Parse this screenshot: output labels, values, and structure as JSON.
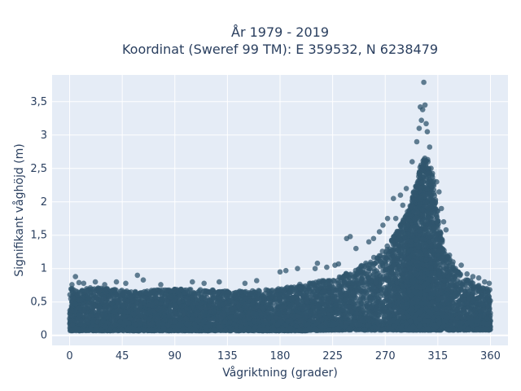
{
  "colors": {
    "plot_bg": "#e5ecf6",
    "grid": "#ffffff",
    "marker": "#30566e",
    "text": "#2a3f5f",
    "page_bg": "#ffffff"
  },
  "chart_data": {
    "type": "scatter",
    "title": "År 1979 - 2019",
    "subtitle": "Koordinat (Sweref 99 TM): E 359532, N 6238479",
    "xlabel": "Vågriktning (grader)",
    "ylabel": "Signifikant våghöjd (m)",
    "xlim": [
      -15,
      375
    ],
    "ylim": [
      -0.15,
      3.9
    ],
    "xticks": [
      0,
      45,
      90,
      135,
      180,
      225,
      270,
      315,
      360
    ],
    "yticks": [
      0,
      0.5,
      1,
      1.5,
      2,
      2.5,
      3,
      3.5
    ],
    "ytick_labels": [
      "0",
      "0,5",
      "1",
      "1,5",
      "2",
      "2,5",
      "3",
      "3,5"
    ],
    "grid": true,
    "legend": "none",
    "marker_opacity": 0.75,
    "envelope": {
      "description": "upper edge of dense cloud of points by direction (data units)",
      "x": [
        0,
        20,
        45,
        60,
        90,
        120,
        135,
        150,
        180,
        200,
        225,
        240,
        255,
        270,
        280,
        290,
        295,
        300,
        305,
        310,
        315,
        320,
        330,
        340,
        350,
        360
      ],
      "y_upper": [
        0.7,
        0.72,
        0.68,
        0.66,
        0.7,
        0.68,
        0.67,
        0.66,
        0.7,
        0.78,
        0.85,
        0.95,
        1.1,
        1.3,
        1.55,
        1.9,
        2.2,
        2.55,
        2.7,
        2.5,
        1.9,
        1.3,
        1.0,
        0.85,
        0.75,
        0.7
      ],
      "y_lower": [
        0.07,
        0.07,
        0.07,
        0.07,
        0.07,
        0.07,
        0.07,
        0.07,
        0.07,
        0.07,
        0.08,
        0.08,
        0.08,
        0.08,
        0.08,
        0.08,
        0.08,
        0.08,
        0.08,
        0.08,
        0.08,
        0.08,
        0.08,
        0.08,
        0.08,
        0.08
      ]
    },
    "outliers": [
      {
        "x": 303,
        "y": 3.79
      },
      {
        "x": 304,
        "y": 3.45
      },
      {
        "x": 300,
        "y": 3.42
      },
      {
        "x": 302,
        "y": 3.38
      },
      {
        "x": 301,
        "y": 3.22
      },
      {
        "x": 305,
        "y": 3.17
      },
      {
        "x": 299,
        "y": 3.1
      },
      {
        "x": 306,
        "y": 3.05
      },
      {
        "x": 297,
        "y": 2.9
      },
      {
        "x": 308,
        "y": 2.82
      },
      {
        "x": 293,
        "y": 2.6
      },
      {
        "x": 283,
        "y": 2.1
      },
      {
        "x": 288,
        "y": 2.2
      },
      {
        "x": 277,
        "y": 2.05
      },
      {
        "x": 316,
        "y": 2.15
      },
      {
        "x": 318,
        "y": 1.9
      },
      {
        "x": 320,
        "y": 1.7
      },
      {
        "x": 322,
        "y": 1.58
      },
      {
        "x": 314,
        "y": 2.3
      },
      {
        "x": 279,
        "y": 1.75
      },
      {
        "x": 285,
        "y": 1.95
      },
      {
        "x": 265,
        "y": 1.55
      },
      {
        "x": 268,
        "y": 1.65
      },
      {
        "x": 272,
        "y": 1.75
      },
      {
        "x": 260,
        "y": 1.45
      },
      {
        "x": 256,
        "y": 1.4
      },
      {
        "x": 245,
        "y": 1.3
      },
      {
        "x": 240,
        "y": 1.48
      },
      {
        "x": 237,
        "y": 1.45
      },
      {
        "x": 230,
        "y": 1.07
      },
      {
        "x": 227,
        "y": 1.05
      },
      {
        "x": 220,
        "y": 1.02
      },
      {
        "x": 212,
        "y": 1.08
      },
      {
        "x": 210,
        "y": 1.0
      },
      {
        "x": 195,
        "y": 1.0
      },
      {
        "x": 185,
        "y": 0.97
      },
      {
        "x": 180,
        "y": 0.95
      },
      {
        "x": 160,
        "y": 0.82
      },
      {
        "x": 150,
        "y": 0.78
      },
      {
        "x": 128,
        "y": 0.8
      },
      {
        "x": 115,
        "y": 0.78
      },
      {
        "x": 105,
        "y": 0.8
      },
      {
        "x": 78,
        "y": 0.76
      },
      {
        "x": 63,
        "y": 0.83
      },
      {
        "x": 58,
        "y": 0.9
      },
      {
        "x": 48,
        "y": 0.78
      },
      {
        "x": 40,
        "y": 0.8
      },
      {
        "x": 30,
        "y": 0.76
      },
      {
        "x": 22,
        "y": 0.8
      },
      {
        "x": 12,
        "y": 0.78
      },
      {
        "x": 8,
        "y": 0.79
      },
      {
        "x": 5,
        "y": 0.88
      },
      {
        "x": 2,
        "y": 0.76
      },
      {
        "x": 330,
        "y": 1.0
      },
      {
        "x": 335,
        "y": 1.05
      },
      {
        "x": 340,
        "y": 0.92
      },
      {
        "x": 345,
        "y": 0.88
      },
      {
        "x": 350,
        "y": 0.86
      },
      {
        "x": 355,
        "y": 0.8
      },
      {
        "x": 359,
        "y": 0.78
      },
      {
        "x": 325,
        "y": 1.2
      },
      {
        "x": 328,
        "y": 1.1
      },
      {
        "x": 295,
        "y": 1.75
      },
      {
        "x": 312,
        "y": 1.6
      },
      {
        "x": 317,
        "y": 1.55
      },
      {
        "x": 310,
        "y": 2.0
      }
    ],
    "sampled_cloud_points": 9000
  }
}
